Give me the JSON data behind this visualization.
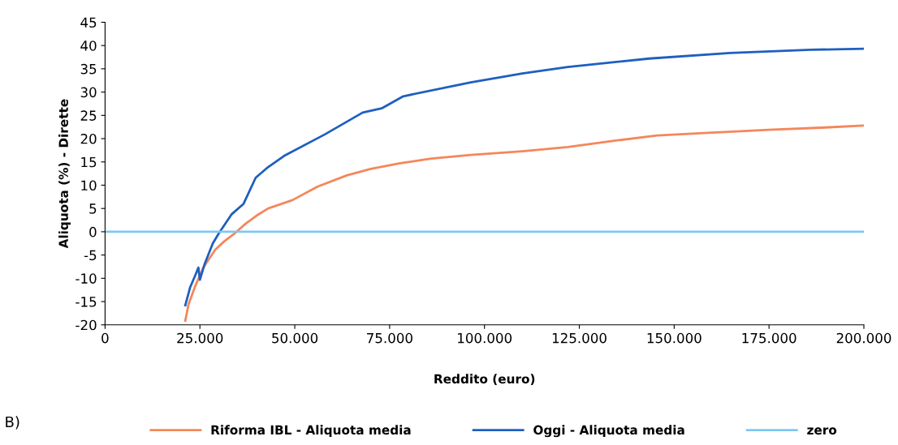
{
  "chart_data": {
    "type": "line",
    "xlabel": "Reddito (euro)",
    "ylabel": "Aliquota (%) - Dirette",
    "series": [
      {
        "name": "Riforma IBL - Aliquota media",
        "color": "#f4875a",
        "x": [
          21150,
          22000,
          23700,
          25900,
          29000,
          31500,
          34400,
          37000,
          40000,
          43000,
          49400,
          56000,
          63700,
          70000,
          77800,
          86000,
          96400,
          110000,
          122000,
          133800,
          145500,
          160000,
          175000,
          190000,
          200000
        ],
        "values": [
          -19.1,
          -15.6,
          -11.8,
          -7.7,
          -3.9,
          -2,
          -0.2,
          1.7,
          3.5,
          5,
          6.8,
          9.7,
          12.1,
          13.5,
          14.7,
          15.7,
          16.5,
          17.3,
          18.2,
          19.5,
          20.7,
          21.3,
          21.9,
          22.4,
          22.8
        ]
      },
      {
        "name": "Oggi - Aliquota media",
        "color": "#1f5fbf",
        "x": [
          21150,
          22400,
          23700,
          24600,
          25000,
          26300,
          28400,
          30100,
          33300,
          36500,
          39700,
          43000,
          47200,
          57900,
          67900,
          72900,
          78600,
          96400,
          110000,
          122000,
          143400,
          164700,
          186000,
          200000
        ],
        "values": [
          -15.8,
          -12,
          -9.5,
          -7.7,
          -10.3,
          -6.8,
          -2.5,
          -0.2,
          3.7,
          6,
          11.6,
          13.9,
          16.3,
          20.9,
          25.6,
          26.5,
          29.1,
          32.1,
          34,
          35.4,
          37.2,
          38.4,
          39.1,
          39.3
        ]
      },
      {
        "name": "zero",
        "color": "#7ec8f0",
        "x": [
          0,
          200000
        ],
        "values": [
          0,
          0
        ]
      }
    ],
    "xlim": [
      0,
      200000
    ],
    "xticks": [
      0,
      {
        "value": 25000,
        "label": "25.000"
      },
      {
        "value": 50000,
        "label": "50.000"
      },
      {
        "value": 75000,
        "label": "75.000"
      },
      {
        "value": 100000,
        "label": "100.000"
      },
      {
        "value": 125000,
        "label": "125.000"
      },
      {
        "value": 150000,
        "label": "150.000"
      },
      {
        "value": 175000,
        "label": "175.000"
      },
      {
        "value": 200000,
        "label": "200.000"
      }
    ],
    "ylim": [
      -20,
      45
    ],
    "yticks": [
      -20,
      -15,
      -10,
      -5,
      0,
      5,
      10,
      15,
      20,
      25,
      30,
      35,
      40,
      45
    ],
    "grid": false,
    "legend": "bottom",
    "annotations": [
      "B)"
    ]
  }
}
